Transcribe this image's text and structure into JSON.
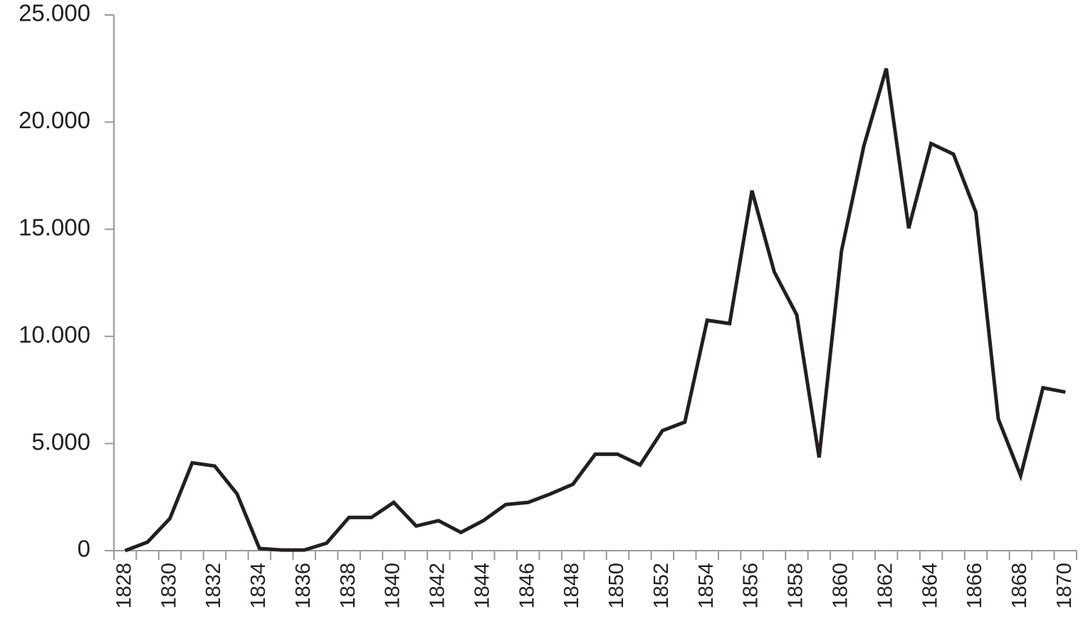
{
  "chart_data": {
    "type": "line",
    "categories": [
      "1828",
      null,
      "1830",
      null,
      "1832",
      null,
      "1834",
      null,
      "1836",
      null,
      "1838",
      null,
      "1840",
      null,
      "1842",
      null,
      "1844",
      null,
      "1846",
      null,
      "1848",
      null,
      "1850",
      null,
      "1852",
      null,
      "1854",
      null,
      "1856",
      null,
      "1858",
      null,
      "1860",
      null,
      "1862",
      null,
      "1864",
      null,
      "1866",
      null,
      "1868",
      null,
      "1870"
    ],
    "series": [
      {
        "color": "#231f20",
        "values": [
          0,
          400,
          1500,
          4100,
          3950,
          2650,
          100,
          30,
          30,
          350,
          1550,
          1550,
          2250,
          1150,
          1400,
          850,
          1400,
          2150,
          2250,
          2650,
          3100,
          4500,
          4500,
          4000,
          5600,
          6000,
          10750,
          10600,
          16800,
          13000,
          11000,
          4350,
          14000,
          18900,
          22500,
          15050,
          19000,
          18500,
          15800,
          6150,
          3500,
          7600,
          7400
        ]
      }
    ],
    "ylim": [
      0,
      25000
    ],
    "yticks": [
      0,
      {
        "value": 5000,
        "label": "5.000"
      },
      {
        "value": 10000,
        "label": "10.000"
      },
      {
        "value": 15000,
        "label": "15.000"
      },
      {
        "value": 20000,
        "label": "20.000"
      },
      {
        "value": 25000,
        "label": "25.000"
      }
    ]
  }
}
